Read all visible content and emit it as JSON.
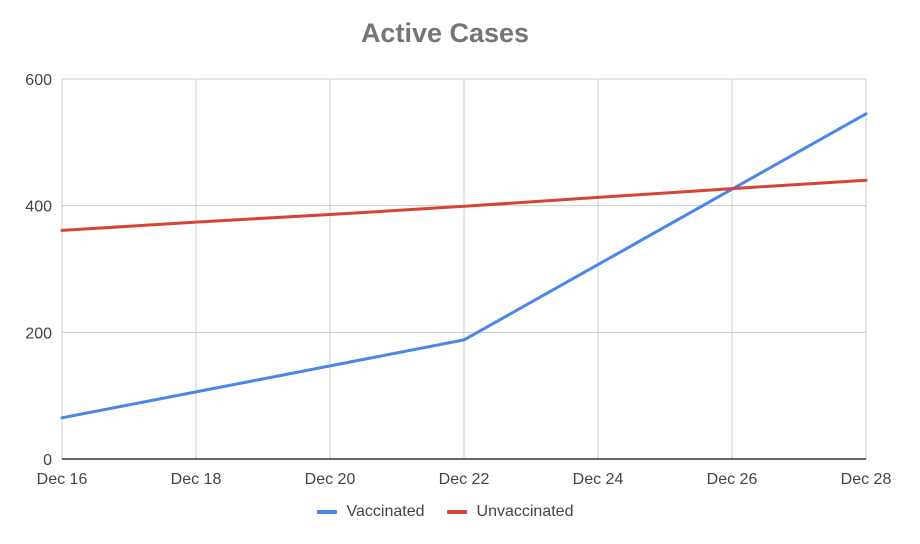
{
  "chart_data": {
    "type": "line",
    "title": "Active Cases",
    "x": [
      "Dec 16",
      "Dec 18",
      "Dec 20",
      "Dec 22",
      "Dec 24",
      "Dec 26",
      "Dec 28"
    ],
    "xlabel": "",
    "ylabel": "",
    "ylim": [
      0,
      600
    ],
    "yticks": [
      "0",
      "200",
      "400",
      "600"
    ],
    "grid": true,
    "legend_position": "bottom",
    "series": [
      {
        "name": "Vaccinated",
        "color": "#4a86e8",
        "values": [
          65,
          106,
          147,
          188,
          307,
          426,
          545
        ]
      },
      {
        "name": "Unvaccinated",
        "color": "#d64437",
        "values": [
          361,
          374,
          386,
          399,
          413,
          427,
          440
        ]
      }
    ]
  }
}
